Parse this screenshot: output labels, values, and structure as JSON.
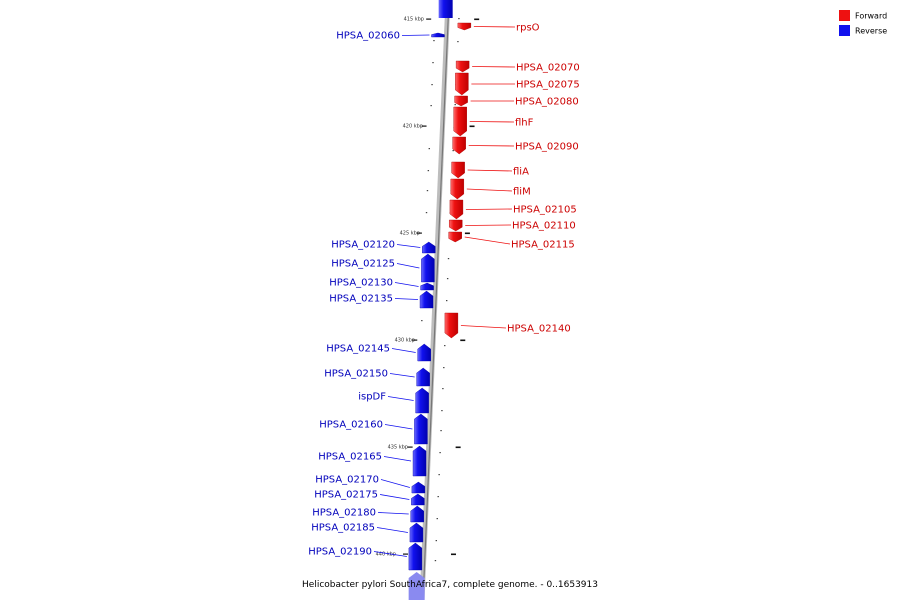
{
  "caption": "Helicobacter pylori SouthAfrica7, complete genome. - 0..1653913",
  "legend": [
    {
      "label": "Forward",
      "color": "#ee1111"
    },
    {
      "label": "Reverse",
      "color": "#1111ee"
    }
  ],
  "colors": {
    "forward": "#ee1111",
    "reverse": "#1111ee",
    "backbone": "#999999"
  },
  "ticks": [
    "415 kbp",
    "420 kbp",
    "425 kbp",
    "430 kbp",
    "435 kbp",
    "440 kbp"
  ],
  "forward_genes": [
    "rpsO",
    "HPSA_02070",
    "HPSA_02075",
    "HPSA_02080",
    "flhF",
    "HPSA_02090",
    "fliA",
    "fliM",
    "HPSA_02105",
    "HPSA_02110",
    "HPSA_02115",
    "HPSA_02140"
  ],
  "reverse_genes": [
    "HPSA_02060",
    "HPSA_02120",
    "HPSA_02125",
    "HPSA_02130",
    "HPSA_02135",
    "HPSA_02145",
    "HPSA_02150",
    "ispDF",
    "HPSA_02160",
    "HPSA_02165",
    "HPSA_02170",
    "HPSA_02175",
    "HPSA_02180",
    "HPSA_02185",
    "HPSA_02190"
  ]
}
